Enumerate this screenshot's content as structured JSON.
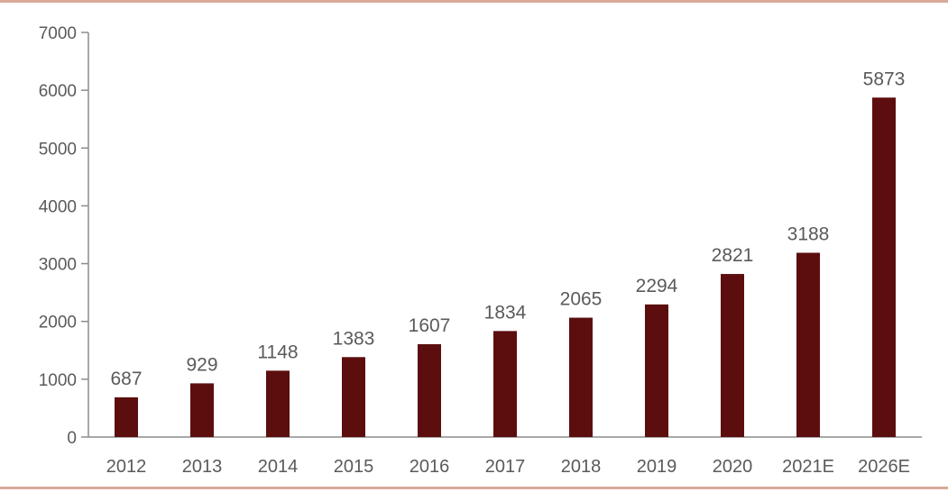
{
  "chart_data": {
    "type": "bar",
    "title": "",
    "xlabel": "",
    "ylabel": "",
    "categories": [
      "2012",
      "2013",
      "2014",
      "2015",
      "2016",
      "2017",
      "2018",
      "2019",
      "2020",
      "2021E",
      "2026E"
    ],
    "values": [
      687,
      929,
      1148,
      1383,
      1607,
      1834,
      2065,
      2294,
      2821,
      3188,
      5873
    ],
    "ylim": [
      0,
      7000
    ],
    "yticks": [
      0,
      1000,
      2000,
      3000,
      4000,
      5000,
      6000,
      7000
    ],
    "grid": false,
    "legend": "none",
    "bar_color": "#5c0e0e",
    "frame_color": "#d9a99a"
  }
}
